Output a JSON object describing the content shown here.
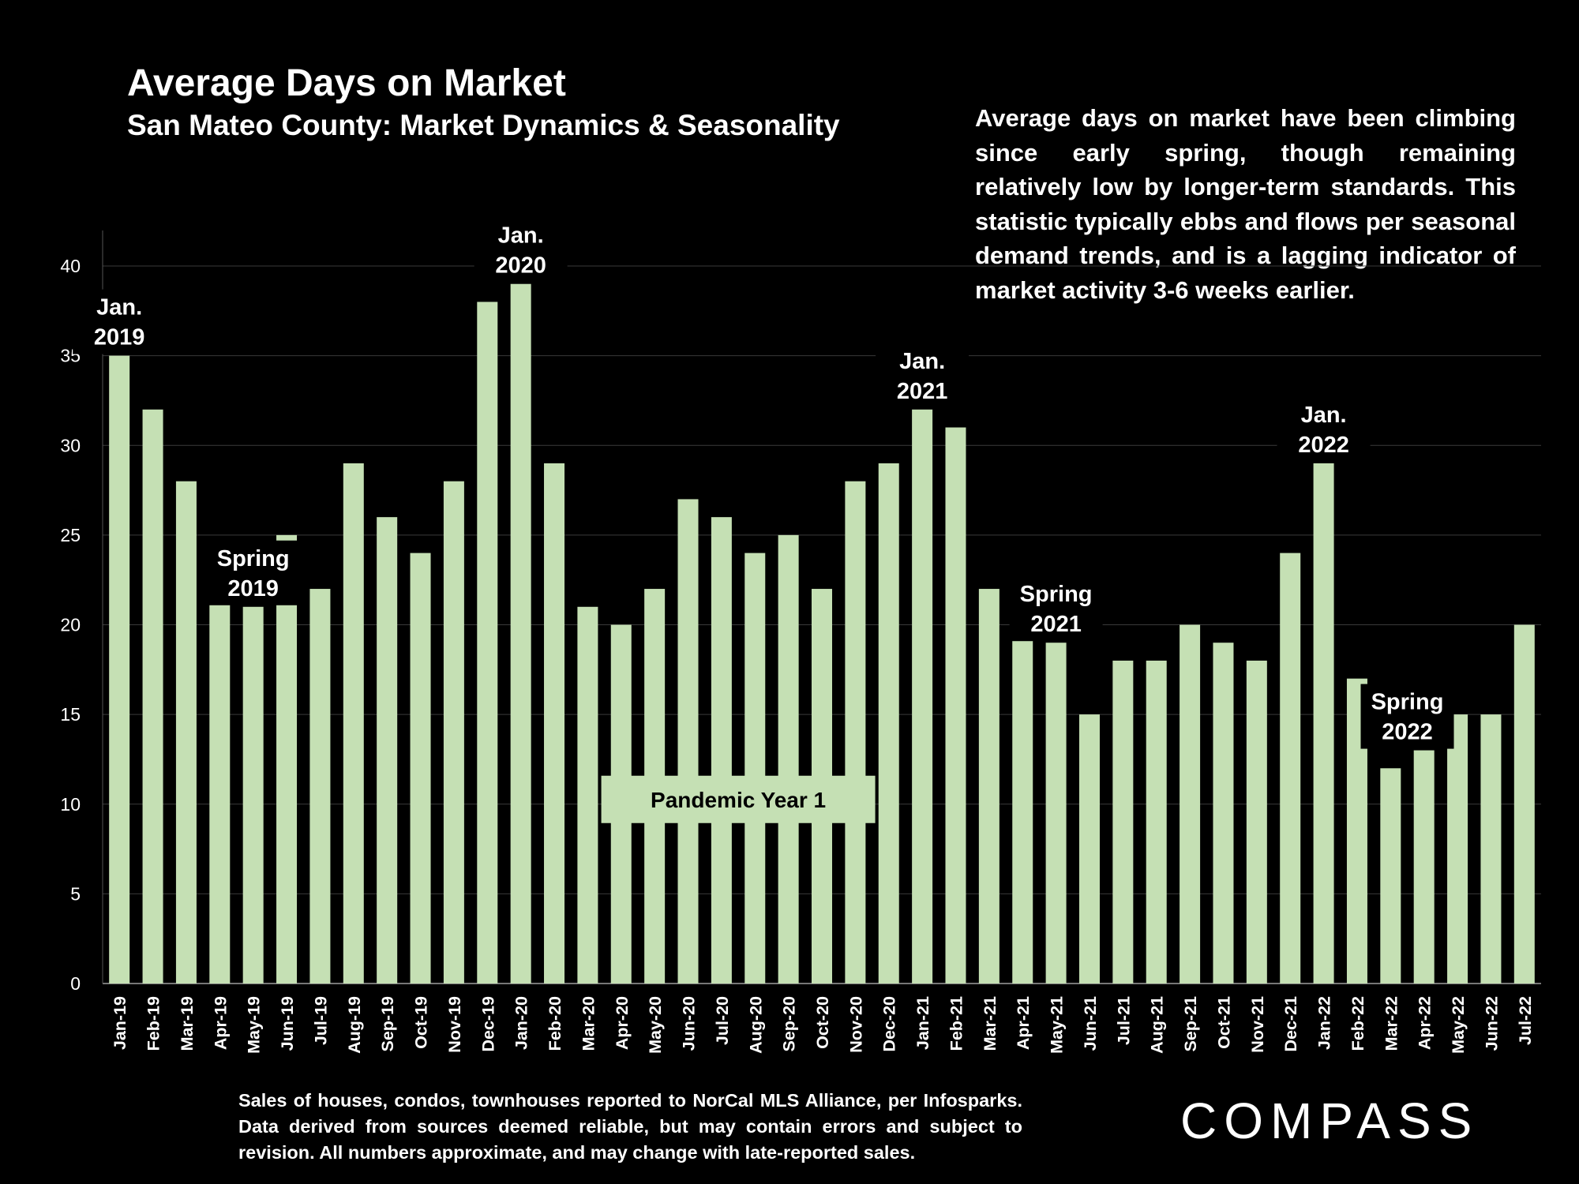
{
  "title": "Average Days on Market",
  "subtitle": "San Mateo County: Market Dynamics & Seasonality",
  "note": "Average days on market have been climbing since early spring, though remaining relatively low by longer-term standards. This statistic typically ebbs and flows per seasonal demand trends, and is a lagging indicator of market activity 3-6 weeks earlier.",
  "footer": "Sales of houses, condos, townhouses reported to NorCal MLS Alliance, per Infosparks. Data derived from sources deemed reliable, but may contain errors and subject to revision. All numbers approximate, and may change with late-reported sales.",
  "logo": "COMPASS",
  "colors": {
    "bar": "#c5e0b4",
    "grid": "#3a3a3a",
    "background": "#000000"
  },
  "chart_data": {
    "type": "bar",
    "categories": [
      "Jan-19",
      "Feb-19",
      "Mar-19",
      "Apr-19",
      "May-19",
      "Jun-19",
      "Jul-19",
      "Aug-19",
      "Sep-19",
      "Oct-19",
      "Nov-19",
      "Dec-19",
      "Jan-20",
      "Feb-20",
      "Mar-20",
      "Apr-20",
      "May-20",
      "Jun-20",
      "Jul-20",
      "Aug-20",
      "Sep-20",
      "Oct-20",
      "Nov-20",
      "Dec-20",
      "Jan-21",
      "Feb-21",
      "Mar-21",
      "Apr-21",
      "May-21",
      "Jun-21",
      "Jul-21",
      "Aug-21",
      "Sep-21",
      "Oct-21",
      "Nov-21",
      "Dec-21",
      "Jan-22",
      "Feb-22",
      "Mar-22",
      "Apr-22",
      "May-22",
      "Jun-22",
      "Jul-22"
    ],
    "values": [
      35,
      32,
      28,
      22,
      21,
      25,
      22,
      29,
      26,
      24,
      28,
      38,
      39,
      29,
      21,
      20,
      22,
      27,
      26,
      24,
      25,
      22,
      28,
      29,
      32,
      31,
      22,
      21,
      19,
      15,
      18,
      18,
      20,
      19,
      18,
      24,
      29,
      17,
      12,
      13,
      15,
      15,
      20
    ],
    "ylim": [
      0,
      40
    ],
    "yticks": [
      0,
      5,
      10,
      15,
      20,
      25,
      30,
      35,
      40
    ],
    "grid": true,
    "annotations": [
      {
        "index": 0,
        "lines": [
          "Jan.",
          "2019"
        ]
      },
      {
        "index": 4,
        "lines": [
          "Spring",
          "2019"
        ]
      },
      {
        "index": 12,
        "lines": [
          "Jan.",
          "2020"
        ]
      },
      {
        "index": 24,
        "lines": [
          "Jan.",
          "2021"
        ]
      },
      {
        "index": 28,
        "lines": [
          "Spring",
          "2021"
        ]
      },
      {
        "index": 36,
        "lines": [
          "Jan.",
          "2022"
        ]
      },
      {
        "index": 38.5,
        "lines": [
          "Spring",
          "2022"
        ]
      }
    ],
    "band_label": {
      "text": "Pandemic Year 1",
      "from": 14.5,
      "to": 22.5,
      "value": 10
    }
  }
}
